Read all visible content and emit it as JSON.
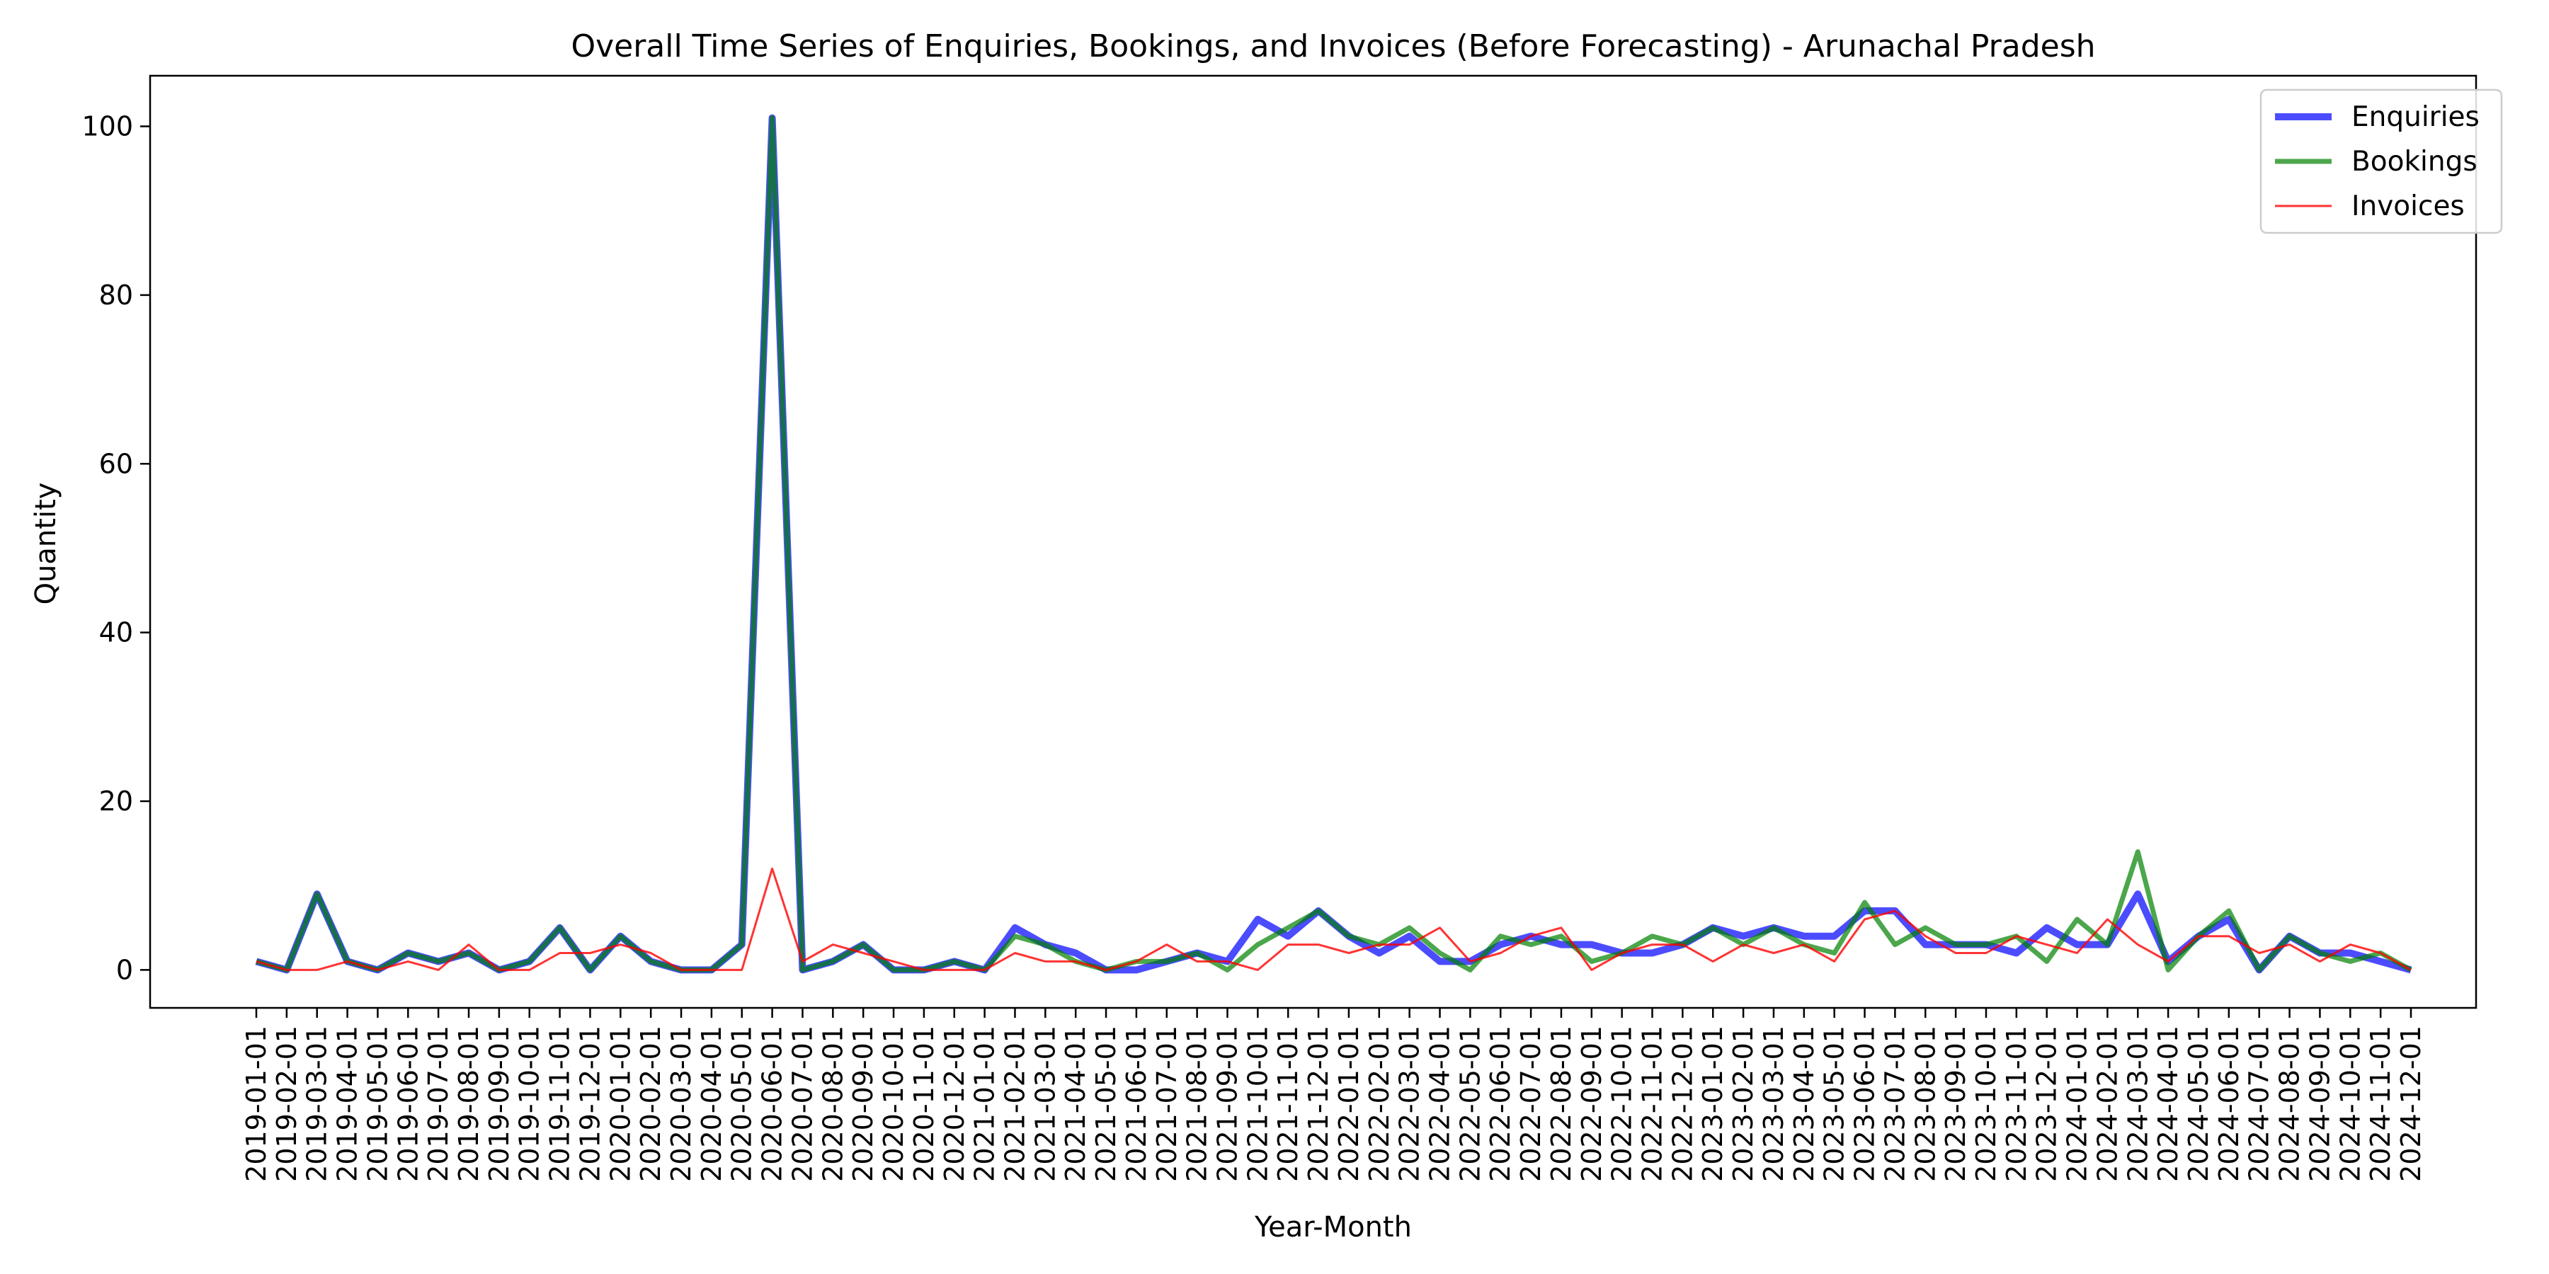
{
  "chart_data": {
    "type": "line",
    "title": "Overall Time Series of Enquiries, Bookings, and Invoices (Before Forecasting) - Arunachal Pradesh",
    "xlabel": "Year-Month",
    "ylabel": "Quantity",
    "ylim": [
      -4.5,
      106
    ],
    "yticks": [
      0,
      20,
      40,
      60,
      80,
      100
    ],
    "grid": false,
    "legend_position": "upper right",
    "x": [
      "2019-01-01",
      "2019-02-01",
      "2019-03-01",
      "2019-04-01",
      "2019-05-01",
      "2019-06-01",
      "2019-07-01",
      "2019-08-01",
      "2019-09-01",
      "2019-10-01",
      "2019-11-01",
      "2019-12-01",
      "2020-01-01",
      "2020-02-01",
      "2020-03-01",
      "2020-04-01",
      "2020-05-01",
      "2020-06-01",
      "2020-07-01",
      "2020-08-01",
      "2020-09-01",
      "2020-10-01",
      "2020-11-01",
      "2020-12-01",
      "2021-01-01",
      "2021-02-01",
      "2021-03-01",
      "2021-04-01",
      "2021-05-01",
      "2021-06-01",
      "2021-07-01",
      "2021-08-01",
      "2021-09-01",
      "2021-10-01",
      "2021-11-01",
      "2021-12-01",
      "2022-01-01",
      "2022-02-01",
      "2022-03-01",
      "2022-04-01",
      "2022-05-01",
      "2022-06-01",
      "2022-07-01",
      "2022-08-01",
      "2022-09-01",
      "2022-10-01",
      "2022-11-01",
      "2022-12-01",
      "2023-01-01",
      "2023-02-01",
      "2023-03-01",
      "2023-04-01",
      "2023-05-01",
      "2023-06-01",
      "2023-07-01",
      "2023-08-01",
      "2023-09-01",
      "2023-10-01",
      "2023-11-01",
      "2023-12-01",
      "2024-01-01",
      "2024-02-01",
      "2024-03-01",
      "2024-04-01",
      "2024-05-01",
      "2024-06-01",
      "2024-07-01",
      "2024-08-01",
      "2024-09-01",
      "2024-10-01",
      "2024-11-01",
      "2024-12-01"
    ],
    "series": [
      {
        "name": "Enquiries",
        "color": "#0000ff",
        "values": [
          1,
          0,
          9,
          1,
          0,
          2,
          1,
          2,
          0,
          1,
          5,
          0,
          4,
          1,
          0,
          0,
          3,
          101,
          0,
          1,
          3,
          0,
          0,
          1,
          0,
          5,
          3,
          2,
          0,
          0,
          1,
          2,
          1,
          6,
          4,
          7,
          4,
          2,
          4,
          1,
          1,
          3,
          4,
          3,
          3,
          2,
          2,
          3,
          5,
          4,
          5,
          4,
          4,
          7,
          7,
          3,
          3,
          3,
          2,
          5,
          3,
          3,
          9,
          1,
          4,
          6,
          0,
          4,
          2,
          2,
          1,
          0
        ]
      },
      {
        "name": "Bookings",
        "color": "#008000",
        "values": [
          1,
          0,
          9,
          1,
          0,
          2,
          1,
          2,
          0,
          1,
          5,
          0,
          4,
          1,
          0,
          0,
          3,
          101,
          0,
          1,
          3,
          0,
          0,
          1,
          0,
          4,
          3,
          1,
          0,
          1,
          1,
          2,
          0,
          3,
          5,
          7,
          4,
          3,
          5,
          2,
          0,
          4,
          3,
          4,
          1,
          2,
          4,
          3,
          5,
          3,
          5,
          3,
          2,
          8,
          3,
          5,
          3,
          3,
          4,
          1,
          6,
          3,
          14,
          0,
          4,
          7,
          0,
          4,
          2,
          1,
          2,
          0
        ]
      },
      {
        "name": "Invoices",
        "color": "#ff0000",
        "values": [
          1,
          0,
          0,
          1,
          0,
          1,
          0,
          3,
          0,
          0,
          2,
          2,
          3,
          2,
          0,
          0,
          0,
          12,
          1,
          3,
          2,
          1,
          0,
          0,
          0,
          2,
          1,
          1,
          0,
          1,
          3,
          1,
          1,
          0,
          3,
          3,
          2,
          3,
          3,
          5,
          1,
          2,
          4,
          5,
          0,
          2,
          3,
          3,
          1,
          3,
          2,
          3,
          1,
          6,
          7,
          4,
          2,
          2,
          4,
          3,
          2,
          6,
          3,
          1,
          4,
          4,
          2,
          3,
          1,
          3,
          2,
          0
        ]
      }
    ]
  }
}
